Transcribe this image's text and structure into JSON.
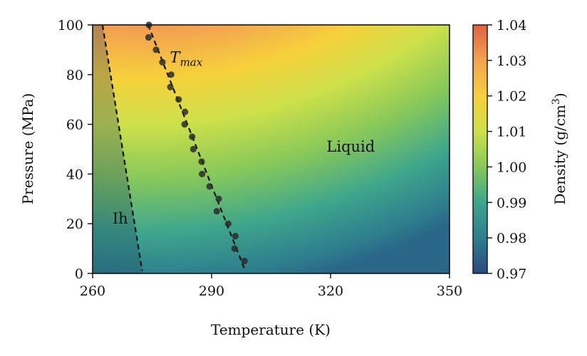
{
  "chart_data": {
    "type": "heatmap",
    "title": "",
    "xlabel": "Temperature (K)",
    "ylabel": "Pressure (MPa)",
    "xlim": [
      260,
      350
    ],
    "ylim": [
      0,
      100
    ],
    "x_ticks": [
      260,
      290,
      320,
      350
    ],
    "y_ticks": [
      0,
      20,
      40,
      60,
      80,
      100
    ],
    "grid": false,
    "colorbar": {
      "label": "Density (g/cm",
      "label_superscript": "3",
      "label_suffix": ")",
      "range": [
        0.97,
        1.04
      ],
      "ticks": [
        "0.97",
        "0.98",
        "0.99",
        "1.00",
        "1.01",
        "1.02",
        "1.03",
        "1.04"
      ],
      "colormap": [
        "#2a4a80",
        "#2e7d8e",
        "#3ea68c",
        "#87c85a",
        "#cde04a",
        "#f6d13c",
        "#f3a24f",
        "#dd6142"
      ]
    },
    "density_field_samples": [
      {
        "T": 260,
        "P": 100,
        "density": 1.038
      },
      {
        "T": 290,
        "P": 100,
        "density": 1.033
      },
      {
        "T": 320,
        "P": 100,
        "density": 1.025
      },
      {
        "T": 350,
        "P": 100,
        "density": 1.02
      },
      {
        "T": 320,
        "P": 50,
        "density": 1.008
      },
      {
        "T": 350,
        "P": 0,
        "density": 0.975
      },
      {
        "T": 260,
        "P": 0,
        "density": 0.975
      },
      {
        "T": 290,
        "P": 0,
        "density": 0.995
      }
    ],
    "ice_ih_boundary": {
      "x": [
        262.5,
        272.5
      ],
      "y": [
        100,
        1
      ]
    },
    "tmax_line": {
      "x": [
        274,
        298.5
      ],
      "y": [
        100,
        1
      ]
    },
    "tmax_points": {
      "T": [
        274.2,
        274.1,
        276.0,
        277.6,
        279.8,
        279.6,
        281.7,
        283.3,
        283.2,
        285.1,
        285.4,
        287.5,
        287.6,
        289.5,
        291.8,
        291.3,
        294.2,
        296.0,
        295.8,
        298.3
      ],
      "P": [
        100,
        95,
        90,
        85,
        80,
        75,
        70,
        65,
        60,
        55,
        50,
        45,
        40,
        35,
        30,
        25,
        20,
        15,
        10,
        5
      ]
    },
    "annotations": [
      {
        "id": "tmax",
        "base": "T",
        "subscript": "max",
        "T": 279.5,
        "P": 85
      },
      {
        "id": "liquid",
        "text": "Liquid",
        "T": 319,
        "P": 49
      },
      {
        "id": "ih",
        "text": "Ih",
        "T": 265,
        "P": 20
      }
    ]
  }
}
